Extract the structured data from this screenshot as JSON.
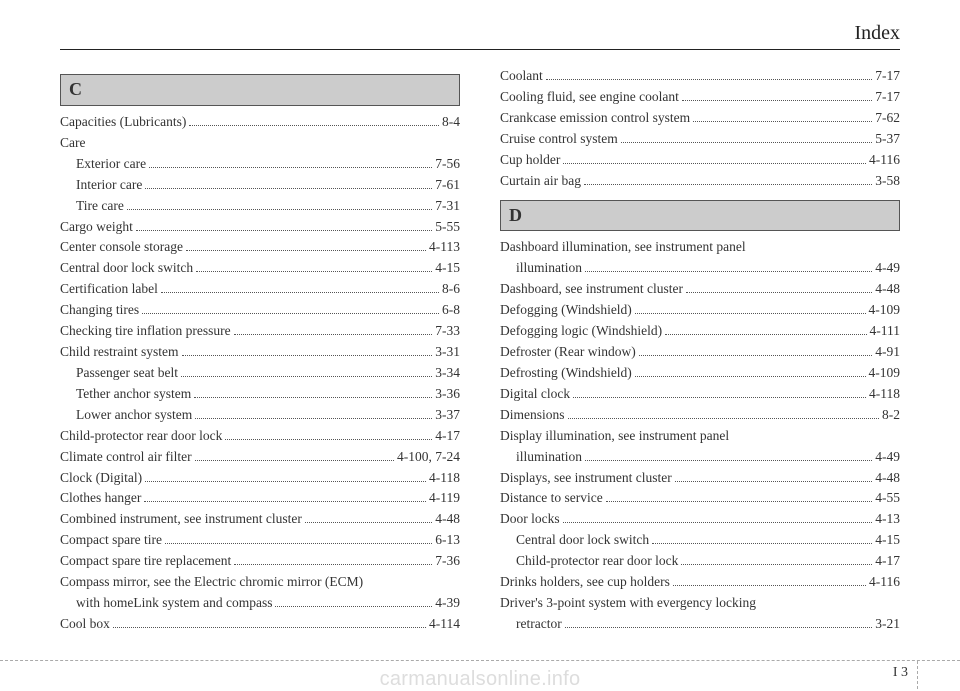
{
  "header": {
    "title": "Index"
  },
  "sections": {
    "C": {
      "letter": "C",
      "entries": [
        {
          "label": "Capacities (Lubricants)",
          "page": "8-4",
          "indent": false
        },
        {
          "label": "Care",
          "page": null,
          "indent": false
        },
        {
          "label": "Exterior care",
          "page": "7-56",
          "indent": true
        },
        {
          "label": "Interior care",
          "page": "7-61",
          "indent": true
        },
        {
          "label": "Tire care",
          "page": "7-31",
          "indent": true
        },
        {
          "label": "Cargo weight",
          "page": "5-55",
          "indent": false
        },
        {
          "label": "Center console storage",
          "page": "4-113",
          "indent": false
        },
        {
          "label": "Central door lock switch",
          "page": "4-15",
          "indent": false
        },
        {
          "label": "Certification label",
          "page": "8-6",
          "indent": false
        },
        {
          "label": "Changing tires",
          "page": "6-8",
          "indent": false
        },
        {
          "label": "Checking tire inflation pressure",
          "page": "7-33",
          "indent": false
        },
        {
          "label": "Child restraint system",
          "page": "3-31",
          "indent": false
        },
        {
          "label": "Passenger seat belt",
          "page": "3-34",
          "indent": true
        },
        {
          "label": "Tether anchor system",
          "page": "3-36",
          "indent": true
        },
        {
          "label": "Lower anchor system",
          "page": "3-37",
          "indent": true
        },
        {
          "label": "Child-protector rear door lock",
          "page": "4-17",
          "indent": false
        },
        {
          "label": "Climate control air filter",
          "page": "4-100, 7-24",
          "indent": false
        },
        {
          "label": "Clock (Digital)",
          "page": "4-118",
          "indent": false
        },
        {
          "label": "Clothes hanger",
          "page": "4-119",
          "indent": false
        },
        {
          "label": "Combined instrument, see instrument cluster",
          "page": "4-48",
          "indent": false
        },
        {
          "label": "Compact spare tire",
          "page": "6-13",
          "indent": false
        },
        {
          "label": "Compact spare tire replacement",
          "page": "7-36",
          "indent": false
        },
        {
          "label": "Compass mirror, see the Electric chromic mirror (ECM)",
          "page": null,
          "indent": false
        },
        {
          "label": "with homeLink system and compass",
          "page": "4-39",
          "indent": true
        },
        {
          "label": "Cool box",
          "page": "4-114",
          "indent": false
        }
      ]
    },
    "C2": {
      "entries": [
        {
          "label": "Coolant",
          "page": "7-17",
          "indent": false
        },
        {
          "label": "Cooling fluid, see engine coolant",
          "page": "7-17",
          "indent": false
        },
        {
          "label": "Crankcase emission control system",
          "page": "7-62",
          "indent": false
        },
        {
          "label": "Cruise control system",
          "page": "5-37",
          "indent": false
        },
        {
          "label": "Cup holder",
          "page": "4-116",
          "indent": false
        },
        {
          "label": "Curtain air bag",
          "page": "3-58",
          "indent": false
        }
      ]
    },
    "D": {
      "letter": "D",
      "entries": [
        {
          "label": "Dashboard illumination, see instrument panel",
          "page": null,
          "indent": false
        },
        {
          "label": "illumination",
          "page": "4-49",
          "indent": true
        },
        {
          "label": "Dashboard, see instrument cluster",
          "page": "4-48",
          "indent": false
        },
        {
          "label": "Defogging (Windshield)",
          "page": "4-109",
          "indent": false
        },
        {
          "label": "Defogging logic (Windshield)",
          "page": "4-111",
          "indent": false
        },
        {
          "label": "Defroster (Rear window)",
          "page": "4-91",
          "indent": false
        },
        {
          "label": "Defrosting (Windshield)",
          "page": "4-109",
          "indent": false
        },
        {
          "label": "Digital clock",
          "page": "4-118",
          "indent": false
        },
        {
          "label": "Dimensions",
          "page": "8-2",
          "indent": false
        },
        {
          "label": "Display illumination, see instrument panel",
          "page": null,
          "indent": false
        },
        {
          "label": "illumination",
          "page": "4-49",
          "indent": true
        },
        {
          "label": "Displays, see instrument cluster",
          "page": "4-48",
          "indent": false
        },
        {
          "label": "Distance to service",
          "page": "4-55",
          "indent": false
        },
        {
          "label": "Door locks",
          "page": "4-13",
          "indent": false
        },
        {
          "label": "Central door lock switch",
          "page": "4-15",
          "indent": true
        },
        {
          "label": "Child-protector rear door lock",
          "page": "4-17",
          "indent": true
        },
        {
          "label": "Drinks holders, see cup holders",
          "page": "4-116",
          "indent": false
        },
        {
          "label": "Driver's 3-point system with evergency locking",
          "page": null,
          "indent": false
        },
        {
          "label": "retractor",
          "page": "3-21",
          "indent": true
        }
      ]
    }
  },
  "pagenum": {
    "prefix": "I",
    "num": "3"
  },
  "watermark": "carmanualsonline.info"
}
